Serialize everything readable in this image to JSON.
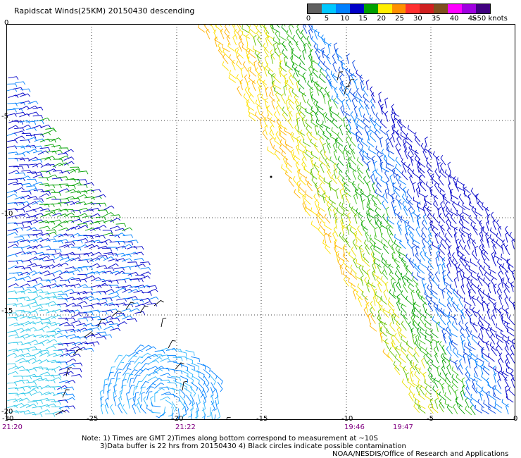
{
  "title": "Rapidscat Winds(25KM) 20150430 descending",
  "legend": {
    "colors": [
      "#606060",
      "#00c8ff",
      "#0080ff",
      "#0000c8",
      "#00a000",
      "#ffee00",
      "#ff9000",
      "#ff3030",
      "#d02020",
      "#805020",
      "#ff00ff",
      "#a000e0",
      "#400080"
    ],
    "labels": [
      "0",
      "5",
      "10",
      "15",
      "20",
      "25",
      "30",
      "35",
      "40",
      "45"
    ],
    "unit": ">50 knots"
  },
  "axes": {
    "x_ticks": [
      "-25",
      "-20",
      "-15",
      "-10",
      "-5",
      "0"
    ],
    "x_start": "-30",
    "y_ticks": [
      "0",
      "-5",
      "-10",
      "-15",
      "-20"
    ]
  },
  "times": {
    "t1": "21:20",
    "t2": "21:22",
    "t3": "19:46",
    "t4": "19:47"
  },
  "note": {
    "line1": "Note: 1) Times are GMT 2)Times along bottom correspond to measurement at ~10S",
    "line2": "3)Data buffer is 22 hrs from 20150430 4) Black circles indicate possible contamination"
  },
  "credit": "NOAA/NESDIS/Office of Research and Applications"
}
